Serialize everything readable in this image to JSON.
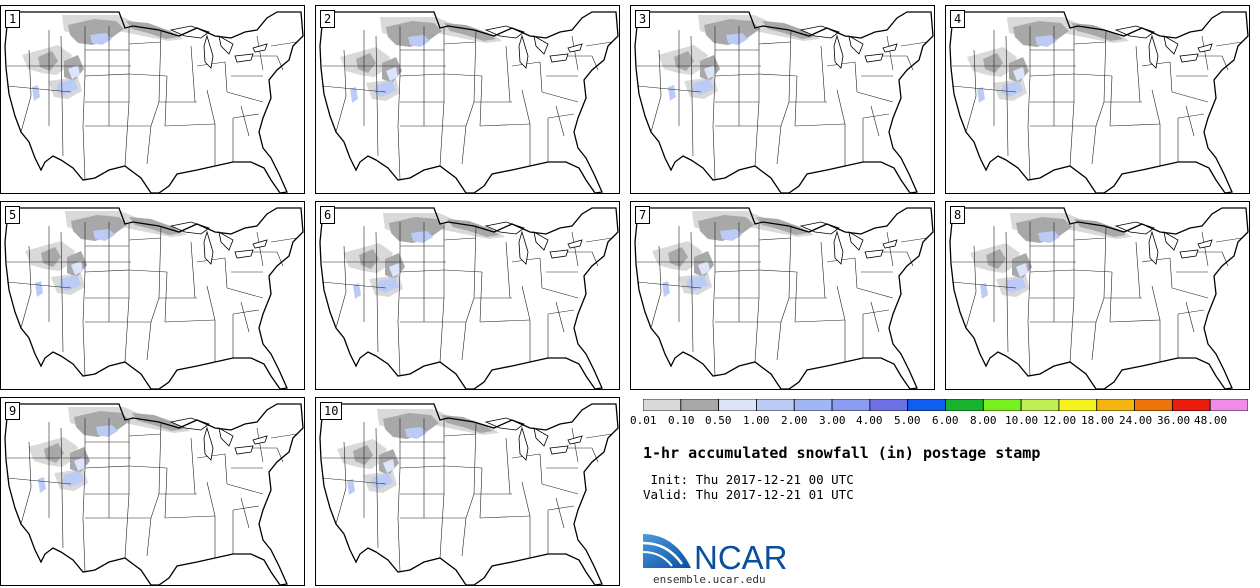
{
  "panels": [
    {
      "label": "1"
    },
    {
      "label": "2"
    },
    {
      "label": "3"
    },
    {
      "label": "4"
    },
    {
      "label": "5"
    },
    {
      "label": "6"
    },
    {
      "label": "7"
    },
    {
      "label": "8"
    },
    {
      "label": "9"
    },
    {
      "label": "10"
    }
  ],
  "legend": {
    "colors": [
      "#d9d9d9",
      "#a8a8a8",
      "#dce4fa",
      "#bccbf6",
      "#a2b6f4",
      "#8c9cf1",
      "#6e70e6",
      "#0f5ef1",
      "#18b231",
      "#78f01e",
      "#bef054",
      "#f6f21c",
      "#f5b40f",
      "#f07508",
      "#ea1c0c",
      "#f08ce8"
    ],
    "labels": [
      "0.01",
      "0.10",
      "0.50",
      "1.00",
      "2.00",
      "3.00",
      "4.00",
      "5.00",
      "6.00",
      "8.00",
      "10.00",
      "12.00",
      "18.00",
      "24.00",
      "36.00",
      "48.00"
    ]
  },
  "title": "1-hr accumulated snowfall (in) postage stamp",
  "init_line": " Init: Thu 2017-12-21 00 UTC",
  "valid_line": "Valid: Thu 2017-12-21 01 UTC",
  "logo_text": "NCAR",
  "logo_url": "ensemble.ucar.edu"
}
